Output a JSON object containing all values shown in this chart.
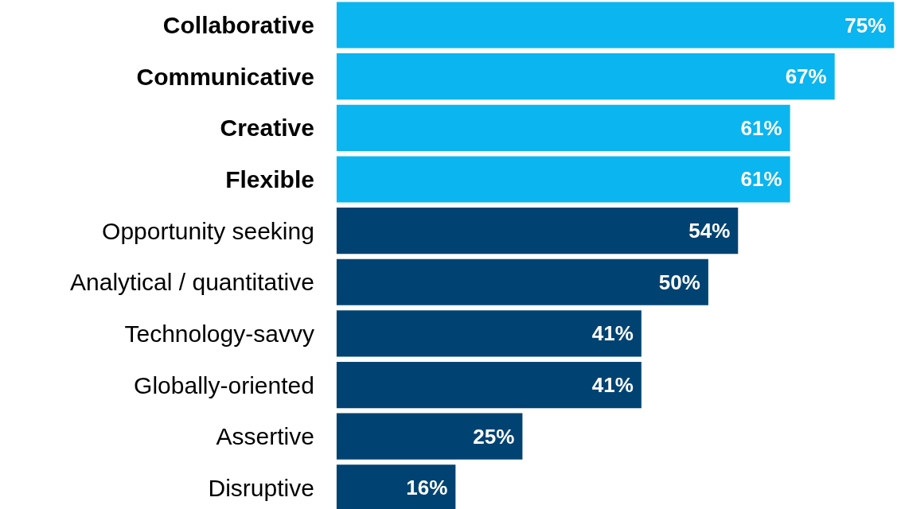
{
  "chart_data": {
    "type": "bar",
    "orientation": "horizontal",
    "value_labels": [
      "75%",
      "67%",
      "61%",
      "61%",
      "54%",
      "50%",
      "41%",
      "41%",
      "25%",
      "16%"
    ],
    "categories": [
      "Collaborative",
      "Communicative",
      "Creative",
      "Flexible",
      "Opportunity seeking",
      "Analytical / quantitative",
      "Technology-savvy",
      "Globally-oriented",
      "Assertive",
      "Disruptive"
    ],
    "values": [
      75,
      67,
      61,
      61,
      54,
      50,
      41,
      41,
      25,
      16
    ],
    "colors": [
      "#0bb5f0",
      "#0bb5f0",
      "#0bb5f0",
      "#0bb5f0",
      "#004372",
      "#004372",
      "#004372",
      "#004372",
      "#004372",
      "#004372"
    ],
    "grid": false
  }
}
